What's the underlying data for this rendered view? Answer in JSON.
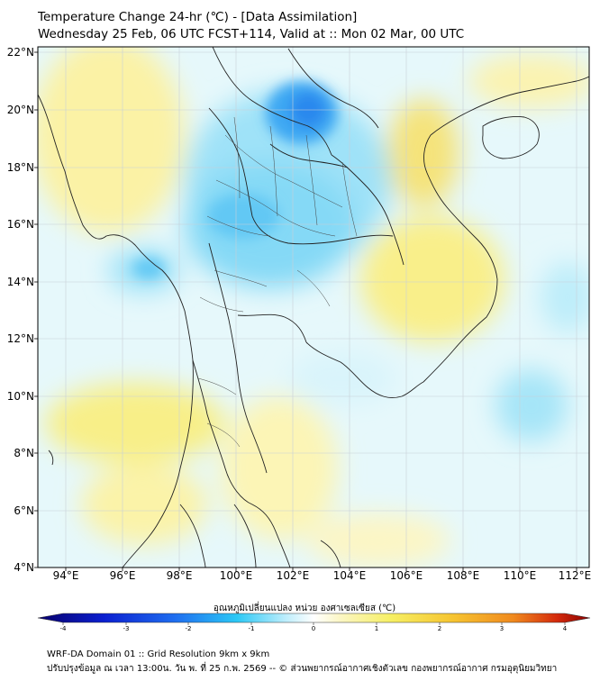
{
  "header": {
    "title_line1": "Temperature Change 24-hr (℃) - [Data Assimilation]",
    "title_line2": "Wednesday 25 Feb, 06 UTC FCST+114, Valid at :: Mon 02 Mar, 00 UTC"
  },
  "map": {
    "lat_labels": [
      "22°N",
      "20°N",
      "18°N",
      "16°N",
      "14°N",
      "12°N",
      "10°N",
      "8°N",
      "6°N",
      "4°N"
    ],
    "lon_labels": [
      "94°E",
      "96°E",
      "98°E",
      "100°E",
      "102°E",
      "104°E",
      "106°E",
      "108°E",
      "110°E",
      "112°E"
    ],
    "extent": {
      "lon_min": 93,
      "lon_max": 112.5,
      "lat_min": 4,
      "lat_max": 22.2
    }
  },
  "colorbar": {
    "title": "อุณหภูมิเปลี่ยนแปลง หน่วย องศาเซลเซียส (℃)",
    "ticks": [
      "-4",
      "-3",
      "-2",
      "-1",
      "0",
      "1",
      "2",
      "3",
      "4"
    ],
    "range": [
      -4,
      4
    ],
    "colors": {
      "cold_extreme": "#08006b",
      "cold": "#1f4ff0",
      "cool": "#2bc8f5",
      "neutral": "#ffffff",
      "warm": "#f6ef63",
      "hot": "#f08a1e",
      "hot_extreme": "#8a0000"
    }
  },
  "footer": {
    "line1": "WRF-DA Domain 01 :: Grid Resolution 9km x 9km",
    "line2": "ปรับปรุงข้อมูล ณ เวลา 13:00น. วัน พ. ที่ 25 ก.พ. 2569 -- © ส่วนพยากรณ์อากาศเชิงตัวเลข กองพยากรณ์อากาศ กรมอุตุนิยมวิทยา"
  }
}
